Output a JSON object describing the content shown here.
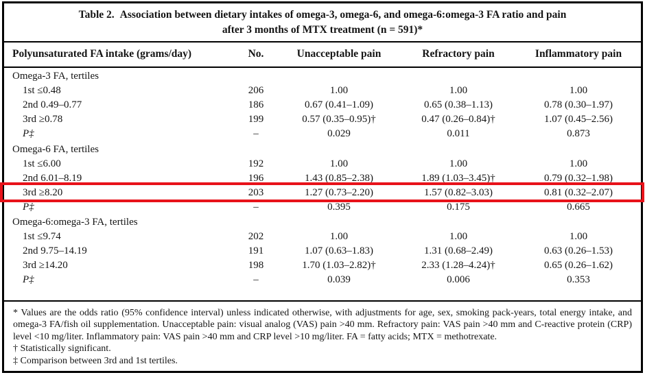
{
  "table": {
    "title": {
      "label": "Table 2.",
      "line1": "Association between dietary intakes of omega-3, omega-6, and omega-6:omega-3 FA ratio and pain",
      "line2": "after 3 months of MTX treatment (n = 591)*"
    },
    "columns": [
      "Polyunsaturated FA intake (grams/day)",
      "No.",
      "Unacceptable pain",
      "Refractory pain",
      "Inflammatory pain"
    ],
    "rows": [
      {
        "type": "section",
        "label": "Omega-3 FA, tertiles"
      },
      {
        "type": "data",
        "cells": [
          "1st ≤0.48",
          "206",
          "1.00",
          "1.00",
          "1.00"
        ]
      },
      {
        "type": "data",
        "cells": [
          "2nd 0.49–0.77",
          "186",
          "0.67 (0.41–1.09)",
          "0.65 (0.38–1.13)",
          "0.78 (0.30–1.97)"
        ]
      },
      {
        "type": "data",
        "cells": [
          "3rd ≥0.78",
          "199",
          "0.57 (0.35–0.95)†",
          "0.47 (0.26–0.84)†",
          "1.07 (0.45–2.56)"
        ]
      },
      {
        "type": "pvalue",
        "cells": [
          "P‡",
          "–",
          "0.029",
          "0.011",
          "0.873"
        ]
      },
      {
        "type": "section",
        "label": "Omega-6 FA, tertiles"
      },
      {
        "type": "data",
        "cells": [
          "1st ≤6.00",
          "192",
          "1.00",
          "1.00",
          "1.00"
        ]
      },
      {
        "type": "data",
        "cells": [
          "2nd 6.01–8.19",
          "196",
          "1.43 (0.85–2.38)",
          "1.89 (1.03–3.45)†",
          "0.79 (0.32–1.98)"
        ]
      },
      {
        "type": "data",
        "cells": [
          "3rd ≥8.20",
          "203",
          "1.27 (0.73–2.20)",
          "1.57 (0.82–3.03)",
          "0.81 (0.32–2.07)"
        ]
      },
      {
        "type": "pvalue",
        "cells": [
          "P‡",
          "–",
          "0.395",
          "0.175",
          "0.665"
        ]
      },
      {
        "type": "section",
        "label": "Omega-6:omega-3 FA, tertiles"
      },
      {
        "type": "data",
        "cells": [
          "1st ≤9.74",
          "202",
          "1.00",
          "1.00",
          "1.00"
        ]
      },
      {
        "type": "data",
        "cells": [
          "2nd 9.75–14.19",
          "191",
          "1.07 (0.63–1.83)",
          "1.31 (0.68–2.49)",
          "0.63 (0.26–1.53)"
        ]
      },
      {
        "type": "data",
        "cells": [
          "3rd ≥14.20",
          "198",
          "1.70 (1.03–2.82)†",
          "2.33 (1.28–4.24)†",
          "0.65 (0.26–1.62)"
        ]
      },
      {
        "type": "pvalue",
        "cells": [
          "P‡",
          "–",
          "0.039",
          "0.006",
          "0.353"
        ]
      }
    ]
  },
  "footnotes": [
    {
      "text": "* Values are the odds ratio (95% confidence interval) unless indicated otherwise, with adjustments for age, sex, smoking pack-years, total energy intake, and omega-3 FA/fish oil supplementation. Unacceptable pain: visual analog (VAS) pain >40 mm. Refractory pain: VAS pain >40 mm and C-reactive protein (CRP) level <10 mg/liter. Inflammatory pain: VAS pain >40 mm and CRP level >10 mg/liter. FA = fatty acids; MTX = methotrexate."
    },
    {
      "text": "† Statistically significant."
    },
    {
      "text": "‡ Comparison between 3rd and 1st tertiles."
    }
  ],
  "highlight": {
    "color": "#e8121a",
    "highlighted_row_index": 8,
    "highlighted_row_label": "3rd ≥8.20"
  }
}
